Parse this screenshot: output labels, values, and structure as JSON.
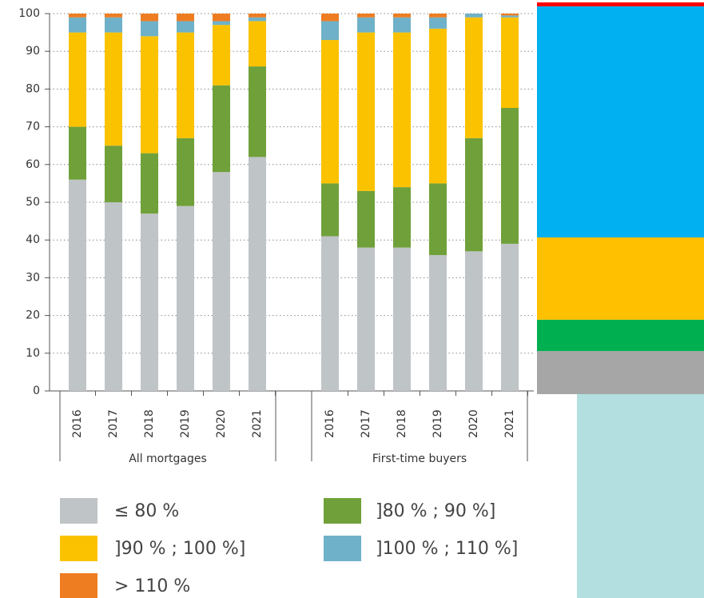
{
  "chart_data": [
    {
      "type": "stacked-bar",
      "categories": [
        "2016",
        "2017",
        "2018",
        "2019",
        "2020",
        "2021",
        "2016",
        "2017",
        "2018",
        "2019",
        "2020",
        "2021"
      ],
      "group_labels": [
        "All mortgages",
        "First-time buyers"
      ],
      "ylim": [
        0,
        100
      ],
      "yticks": [
        0,
        10,
        20,
        30,
        40,
        50,
        60,
        70,
        80,
        90,
        100
      ],
      "grid": true,
      "series": [
        {
          "name": "≤ 80 %",
          "color": "#bfc4c6",
          "values": [
            56,
            50,
            47,
            49,
            58,
            62,
            41,
            38,
            38,
            36,
            37,
            39
          ]
        },
        {
          "name": "]80 % ; 90 %]",
          "color": "#70a03a",
          "values": [
            14,
            15,
            16,
            18,
            23,
            24,
            14,
            15,
            16,
            19,
            30,
            36
          ]
        },
        {
          "name": "]90 % ; 100 %]",
          "color": "#fbc200",
          "values": [
            25,
            30,
            31,
            28,
            16,
            12,
            38,
            42,
            41,
            41,
            32,
            24
          ]
        },
        {
          "name": "]100 % ; 110 %]",
          "color": "#6fb1c8",
          "values": [
            4,
            4,
            4,
            3,
            1,
            1,
            5,
            4,
            4,
            3,
            1,
            0.5
          ]
        },
        {
          "name": "> 110 %",
          "color": "#ee7d22",
          "values": [
            1,
            1,
            2,
            2,
            2,
            1,
            2,
            1,
            1,
            1,
            0,
            0.5
          ]
        }
      ]
    },
    {
      "type": "stacked-block",
      "values": [
        11,
        8,
        21,
        59,
        1
      ],
      "colors": [
        "#a6a6a6",
        "#00b050",
        "#ffc000",
        "#00b0f0",
        "#ff0000"
      ]
    }
  ]
}
